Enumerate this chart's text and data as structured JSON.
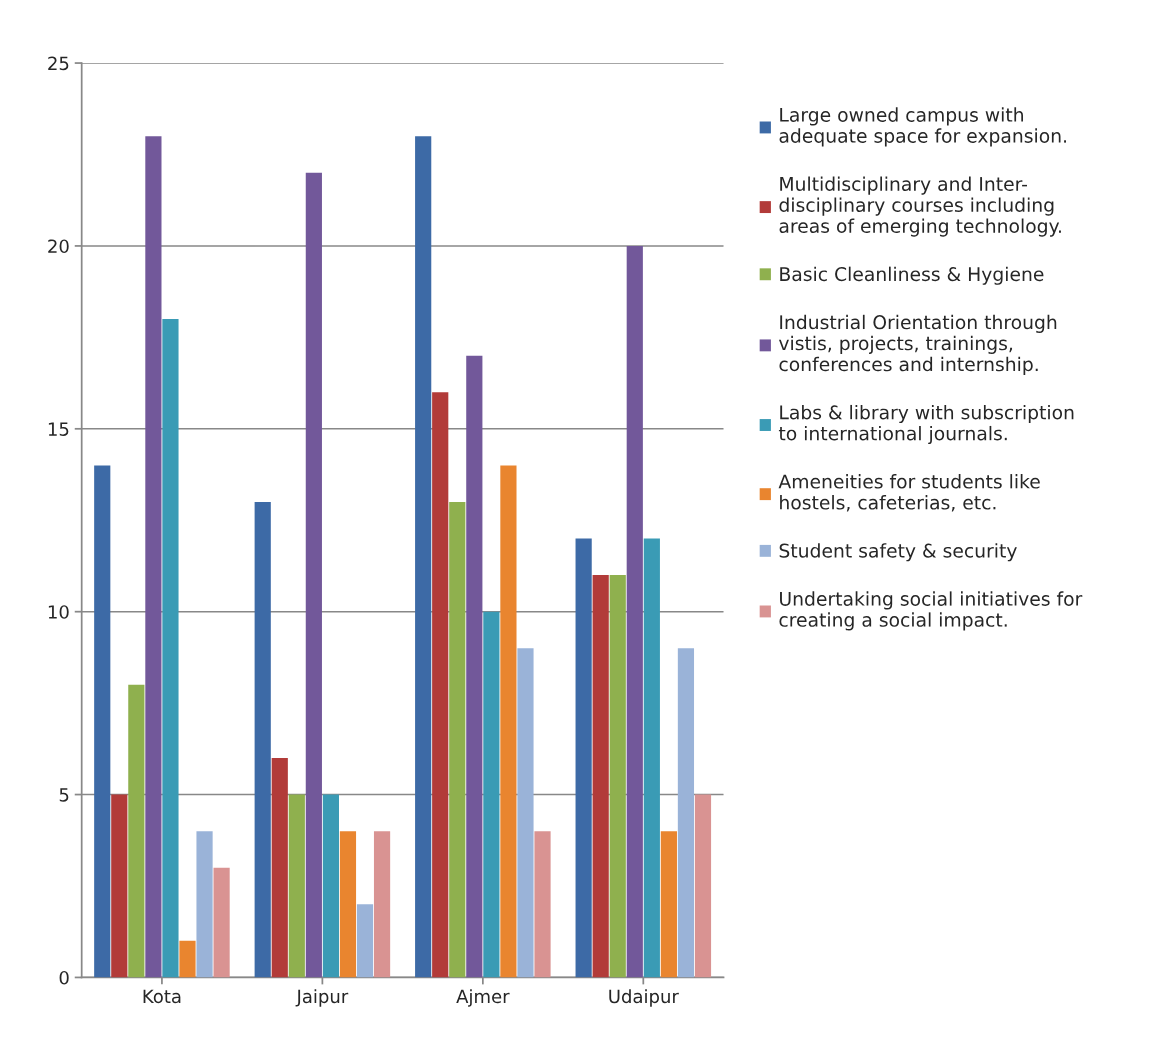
{
  "chart_data": {
    "type": "bar",
    "categories": [
      "Kota",
      "Jaipur",
      "Ajmer",
      "Udaipur"
    ],
    "series": [
      {
        "name": "Large owned campus with\nadequate space for expansion.",
        "color": "#3d6aa6",
        "values": [
          14,
          13,
          23,
          12
        ]
      },
      {
        "name": "Multidisciplinary and Inter-\ndisciplinary courses including\nareas of emerging technology.",
        "color": "#b23b39",
        "values": [
          5,
          6,
          16,
          11
        ]
      },
      {
        "name": "Basic Cleanliness & Hygiene",
        "color": "#8fb04e",
        "values": [
          8,
          5,
          13,
          11
        ]
      },
      {
        "name": "Industrial Orientation through\nvistis, projects, trainings,\nconferences and internship.",
        "color": "#72589a",
        "values": [
          23,
          22,
          17,
          20
        ]
      },
      {
        "name": "Labs & library with subscription\nto international journals.",
        "color": "#3a9bb5",
        "values": [
          18,
          5,
          10,
          12
        ]
      },
      {
        "name": "Ameneities for students like\nhostels, cafeterias, etc.",
        "color": "#e9852f",
        "values": [
          1,
          4,
          14,
          4
        ]
      },
      {
        "name": "Student safety & security",
        "color": "#9ab3d8",
        "values": [
          4,
          2,
          9,
          9
        ]
      },
      {
        "name": "Undertaking social initiatives for\ncreating a social impact.",
        "color": "#d99392",
        "values": [
          3,
          4,
          4,
          5
        ]
      }
    ],
    "ylim": [
      0,
      25
    ],
    "yticks": [
      0,
      5,
      10,
      15,
      20,
      25
    ],
    "grid": "y",
    "legend": "right"
  }
}
